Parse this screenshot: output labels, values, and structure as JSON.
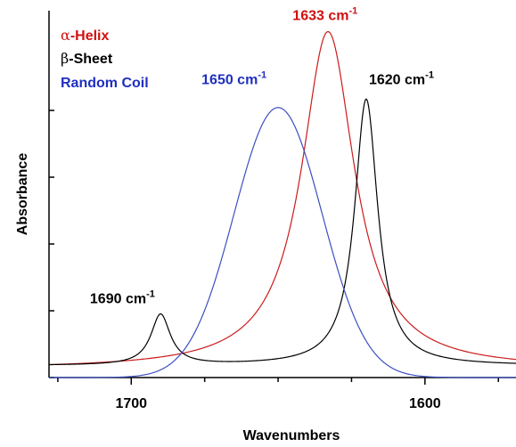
{
  "chart_data": {
    "type": "line",
    "title": "",
    "xlabel": "Wavenumbers",
    "ylabel": "Absorbance",
    "xlim": [
      1728,
      1569
    ],
    "ylim": [
      0,
      1
    ],
    "x_reversed": true,
    "x_ticks": [
      1700,
      1600
    ],
    "x_tick_labels": [
      "1700",
      "1600"
    ],
    "y_tick_labels_shown": false,
    "grid": false,
    "legend": {
      "placement": "top-left",
      "items": [
        {
          "symbol": "α",
          "text": "-Helix",
          "color": "#d01010"
        },
        {
          "symbol": "β",
          "text": "-Sheet",
          "color": "#000000"
        },
        {
          "symbol": "",
          "text": "Random Coil",
          "color": "#1f2fbf"
        }
      ]
    },
    "series": [
      {
        "name": "α-Helix",
        "color": "#cc1b1b",
        "model": "lorentzian",
        "baseline": 0.025,
        "peaks": [
          {
            "center": 1633,
            "height": 1.0,
            "hwhm": 11
          }
        ]
      },
      {
        "name": "β-Sheet",
        "color": "#000000",
        "model": "lorentzian",
        "baseline": 0.035,
        "peaks": [
          {
            "center": 1620,
            "height": 0.79,
            "hwhm": 4.8
          },
          {
            "center": 1690,
            "height": 0.15,
            "hwhm": 4.0
          }
        ]
      },
      {
        "name": "Random Coil",
        "color": "#3c4fbf",
        "model": "gaussian",
        "baseline": 0.0,
        "peaks": [
          {
            "center": 1650,
            "height": 0.8,
            "sigma": 15
          }
        ]
      }
    ],
    "annotations": [
      {
        "value": "1633",
        "unit": "cm",
        "sup": "-1",
        "color": "#d01010",
        "x": 1634,
        "y": 1.06
      },
      {
        "value": "1650",
        "unit": "cm",
        "sup": "-1",
        "color": "#1f2fbf",
        "x": 1665,
        "y": 0.87
      },
      {
        "value": "1620",
        "unit": "cm",
        "sup": "-1",
        "color": "#000000",
        "x": 1608,
        "y": 0.87
      },
      {
        "value": "1690",
        "unit": "cm",
        "sup": "-1",
        "color": "#000000",
        "x": 1703,
        "y": 0.22
      }
    ]
  }
}
